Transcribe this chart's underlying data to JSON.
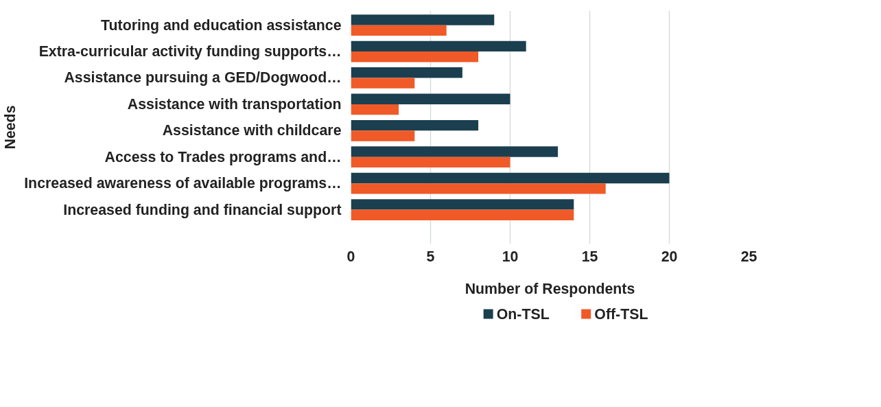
{
  "chart_data": {
    "type": "bar",
    "orientation": "horizontal",
    "xlabel": "Number of Respondents",
    "ylabel": "Needs",
    "categories": [
      "Tutoring and education assistance",
      "Extra-curricular activity funding supports…",
      "Assistance pursuing a GED/Dogwood…",
      "Assistance with transportation",
      "Assistance with childcare",
      "Access to Trades programs and…",
      "Increased awareness of available programs…",
      "Increased funding and financial support"
    ],
    "series": [
      {
        "name": "On-TSL",
        "color": "#1b3f4f",
        "values": [
          9,
          11,
          7,
          10,
          8,
          13,
          20,
          14
        ]
      },
      {
        "name": "Off-TSL",
        "color": "#f05a28",
        "values": [
          6,
          8,
          4,
          3,
          4,
          10,
          16,
          14
        ]
      }
    ],
    "xlim": [
      0,
      25
    ],
    "xticks": [
      0,
      5,
      10,
      15,
      20,
      25
    ],
    "grid": "x",
    "legend": "bottom"
  }
}
